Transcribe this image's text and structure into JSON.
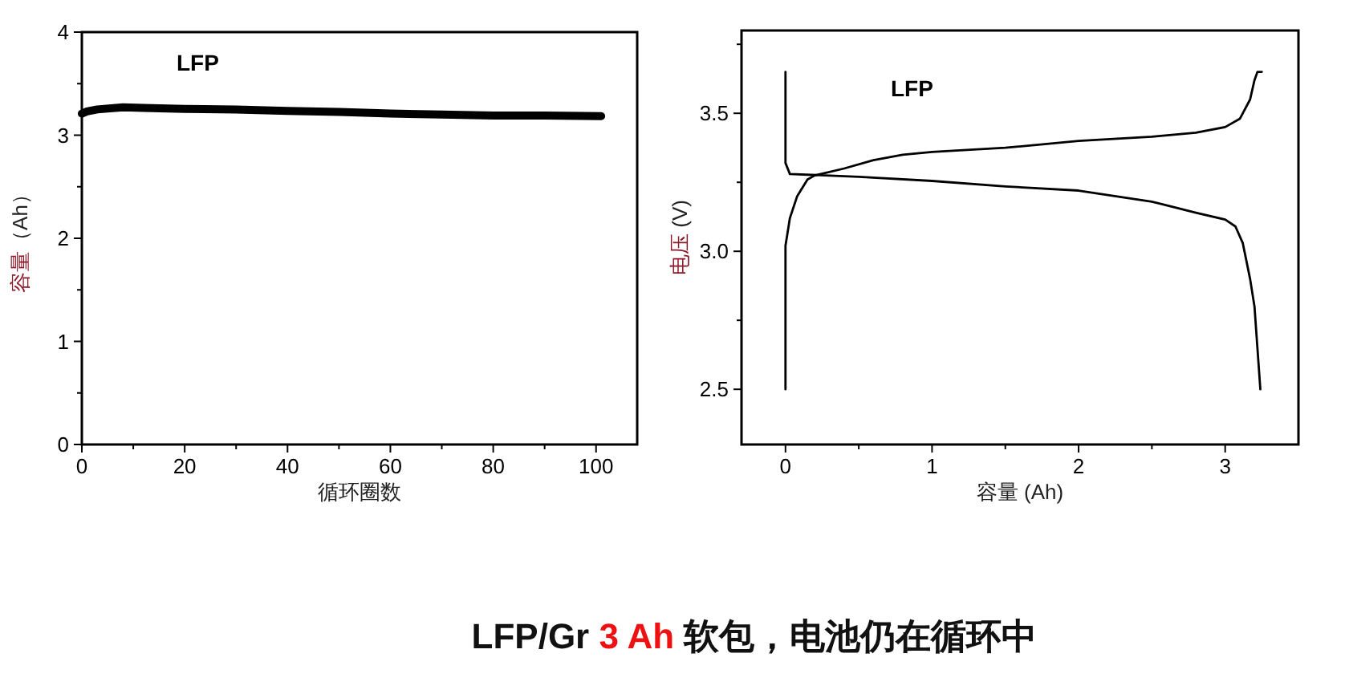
{
  "chart_data": [
    {
      "type": "line",
      "xlabel": "循环圈数",
      "ylabel": "容量（Ah）",
      "annotations": [
        "LFP",
        "LFP/Gr 3 Ah 软包，电池仍在循环中"
      ],
      "xlim": [
        0,
        108
      ],
      "xticks": [
        0,
        {
          "value": 10,
          "label": null
        },
        20,
        {
          "value": 30,
          "label": null
        },
        40,
        {
          "value": 50,
          "label": null
        },
        60,
        {
          "value": 70,
          "label": null
        },
        80,
        {
          "value": 90,
          "label": null
        },
        100
      ],
      "ylim": [
        0,
        4
      ],
      "yticks": [
        0,
        {
          "value": 0.5,
          "label": null
        },
        1,
        {
          "value": 1.5,
          "label": null
        },
        2,
        {
          "value": 2.5,
          "label": null
        },
        3,
        {
          "value": 3.5,
          "label": null
        },
        4
      ],
      "series": [
        {
          "color": "#000000",
          "x": [
            0,
            1,
            3,
            8,
            12,
            20,
            30,
            40,
            50,
            60,
            70,
            80,
            90,
            101
          ],
          "values": [
            3.21,
            3.23,
            3.25,
            3.27,
            3.265,
            3.255,
            3.25,
            3.235,
            3.225,
            3.21,
            3.2,
            3.19,
            3.19,
            3.185
          ]
        }
      ]
    },
    {
      "type": "line",
      "xlabel": "容量 (Ah)",
      "ylabel": "电压 (V)",
      "annotations": [
        "LFP"
      ],
      "xlim": [
        -0.3,
        3.5
      ],
      "xticks": [
        0,
        {
          "value": 0.5,
          "label": null
        },
        1,
        {
          "value": 1.5,
          "label": null
        },
        2,
        {
          "value": 2.5,
          "label": null
        },
        3
      ],
      "ylim": [
        2.3,
        3.8
      ],
      "yticks": [
        2.5,
        {
          "value": 2.75,
          "label": null
        },
        "3.0",
        {
          "value": 3.25,
          "label": null
        },
        3.5,
        {
          "value": 3.75,
          "label": null
        }
      ],
      "series": [
        {
          "color": "#000000",
          "x": [
            0,
            0,
            0.03,
            0.08,
            0.15,
            0.2,
            0.4,
            0.6,
            0.8,
            1,
            1.5,
            2,
            2.5,
            2.8,
            3,
            3.1,
            3.17,
            3.2,
            3.22,
            3.25
          ],
          "values": [
            2.5,
            3.02,
            3.12,
            3.2,
            3.26,
            3.275,
            3.3,
            3.33,
            3.35,
            3.36,
            3.375,
            3.4,
            3.415,
            3.43,
            3.45,
            3.48,
            3.55,
            3.62,
            3.65,
            3.65
          ]
        },
        {
          "color": "#000000",
          "x": [
            0,
            0,
            0.03,
            0.5,
            1,
            1.5,
            2,
            2.5,
            2.8,
            3,
            3.07,
            3.12,
            3.17,
            3.2,
            3.22,
            3.24
          ],
          "values": [
            3.65,
            3.32,
            3.28,
            3.27,
            3.255,
            3.235,
            3.22,
            3.18,
            3.14,
            3.115,
            3.09,
            3.03,
            2.9,
            2.8,
            2.65,
            2.5
          ]
        }
      ]
    }
  ]
}
